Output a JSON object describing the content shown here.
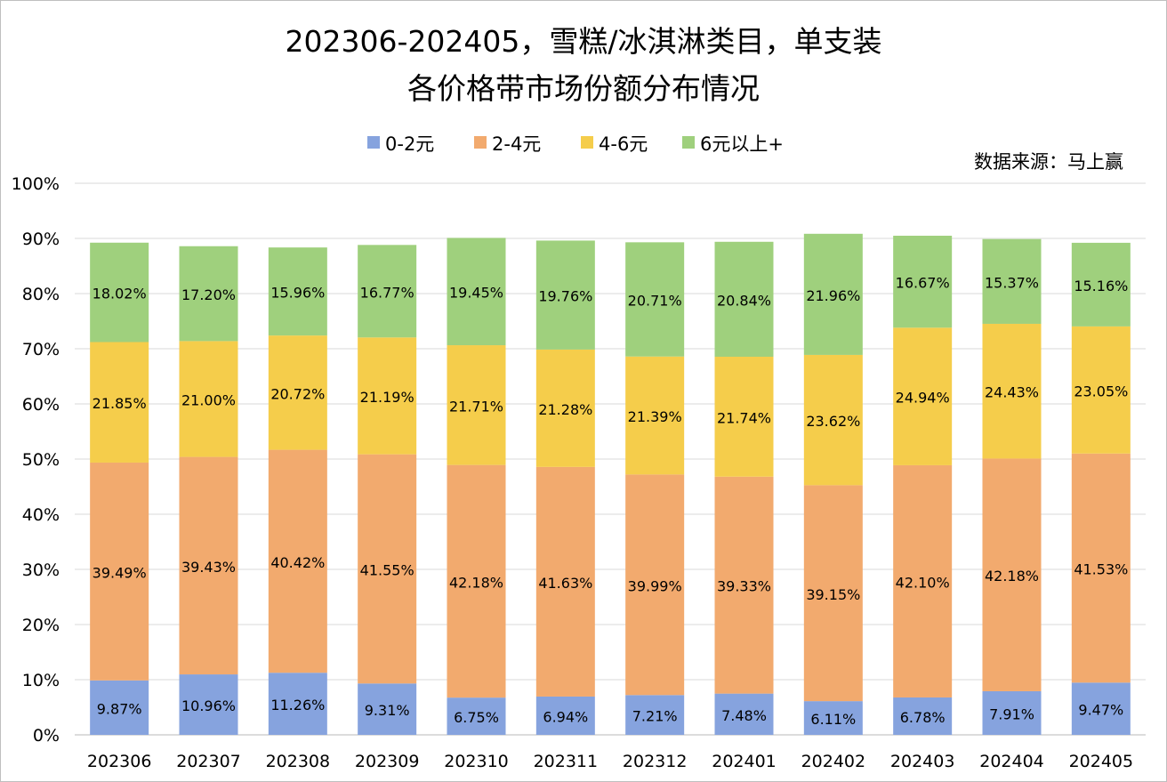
{
  "chart_data": {
    "type": "bar",
    "stacked": true,
    "title": [
      "202306-202405，雪糕/冰淇淋类目，单支装",
      "各价格带市场份额分布情况"
    ],
    "source": "数据来源：马上赢",
    "categories": [
      "202306",
      "202307",
      "202308",
      "202309",
      "202310",
      "202311",
      "202312",
      "202401",
      "202402",
      "202403",
      "202404",
      "202405"
    ],
    "series": [
      {
        "name": "0-2元",
        "color": "#86a3de",
        "values": [
          9.87,
          10.96,
          11.26,
          9.31,
          6.75,
          6.94,
          7.21,
          7.48,
          6.11,
          6.78,
          7.91,
          9.47
        ]
      },
      {
        "name": "2-4元",
        "color": "#f2aa6e",
        "values": [
          39.49,
          39.43,
          40.42,
          41.55,
          42.18,
          41.63,
          39.99,
          39.33,
          39.15,
          42.1,
          42.18,
          41.53
        ]
      },
      {
        "name": "4-6元",
        "color": "#f5cd4b",
        "values": [
          21.85,
          21.0,
          20.72,
          21.19,
          21.71,
          21.28,
          21.39,
          21.74,
          23.62,
          24.94,
          24.43,
          23.05
        ]
      },
      {
        "name": "6元以上+",
        "color": "#9fd07d",
        "values": [
          18.02,
          17.2,
          15.96,
          16.77,
          19.45,
          19.76,
          20.71,
          20.84,
          21.96,
          16.67,
          15.37,
          15.16
        ]
      }
    ],
    "yticks": [
      "0%",
      "10%",
      "20%",
      "30%",
      "40%",
      "50%",
      "60%",
      "70%",
      "80%",
      "90%",
      "100%"
    ],
    "ylim": [
      0,
      100
    ],
    "xlabel": "",
    "ylabel": "",
    "grid": true,
    "legend": "top-center",
    "value_suffix": "%"
  }
}
